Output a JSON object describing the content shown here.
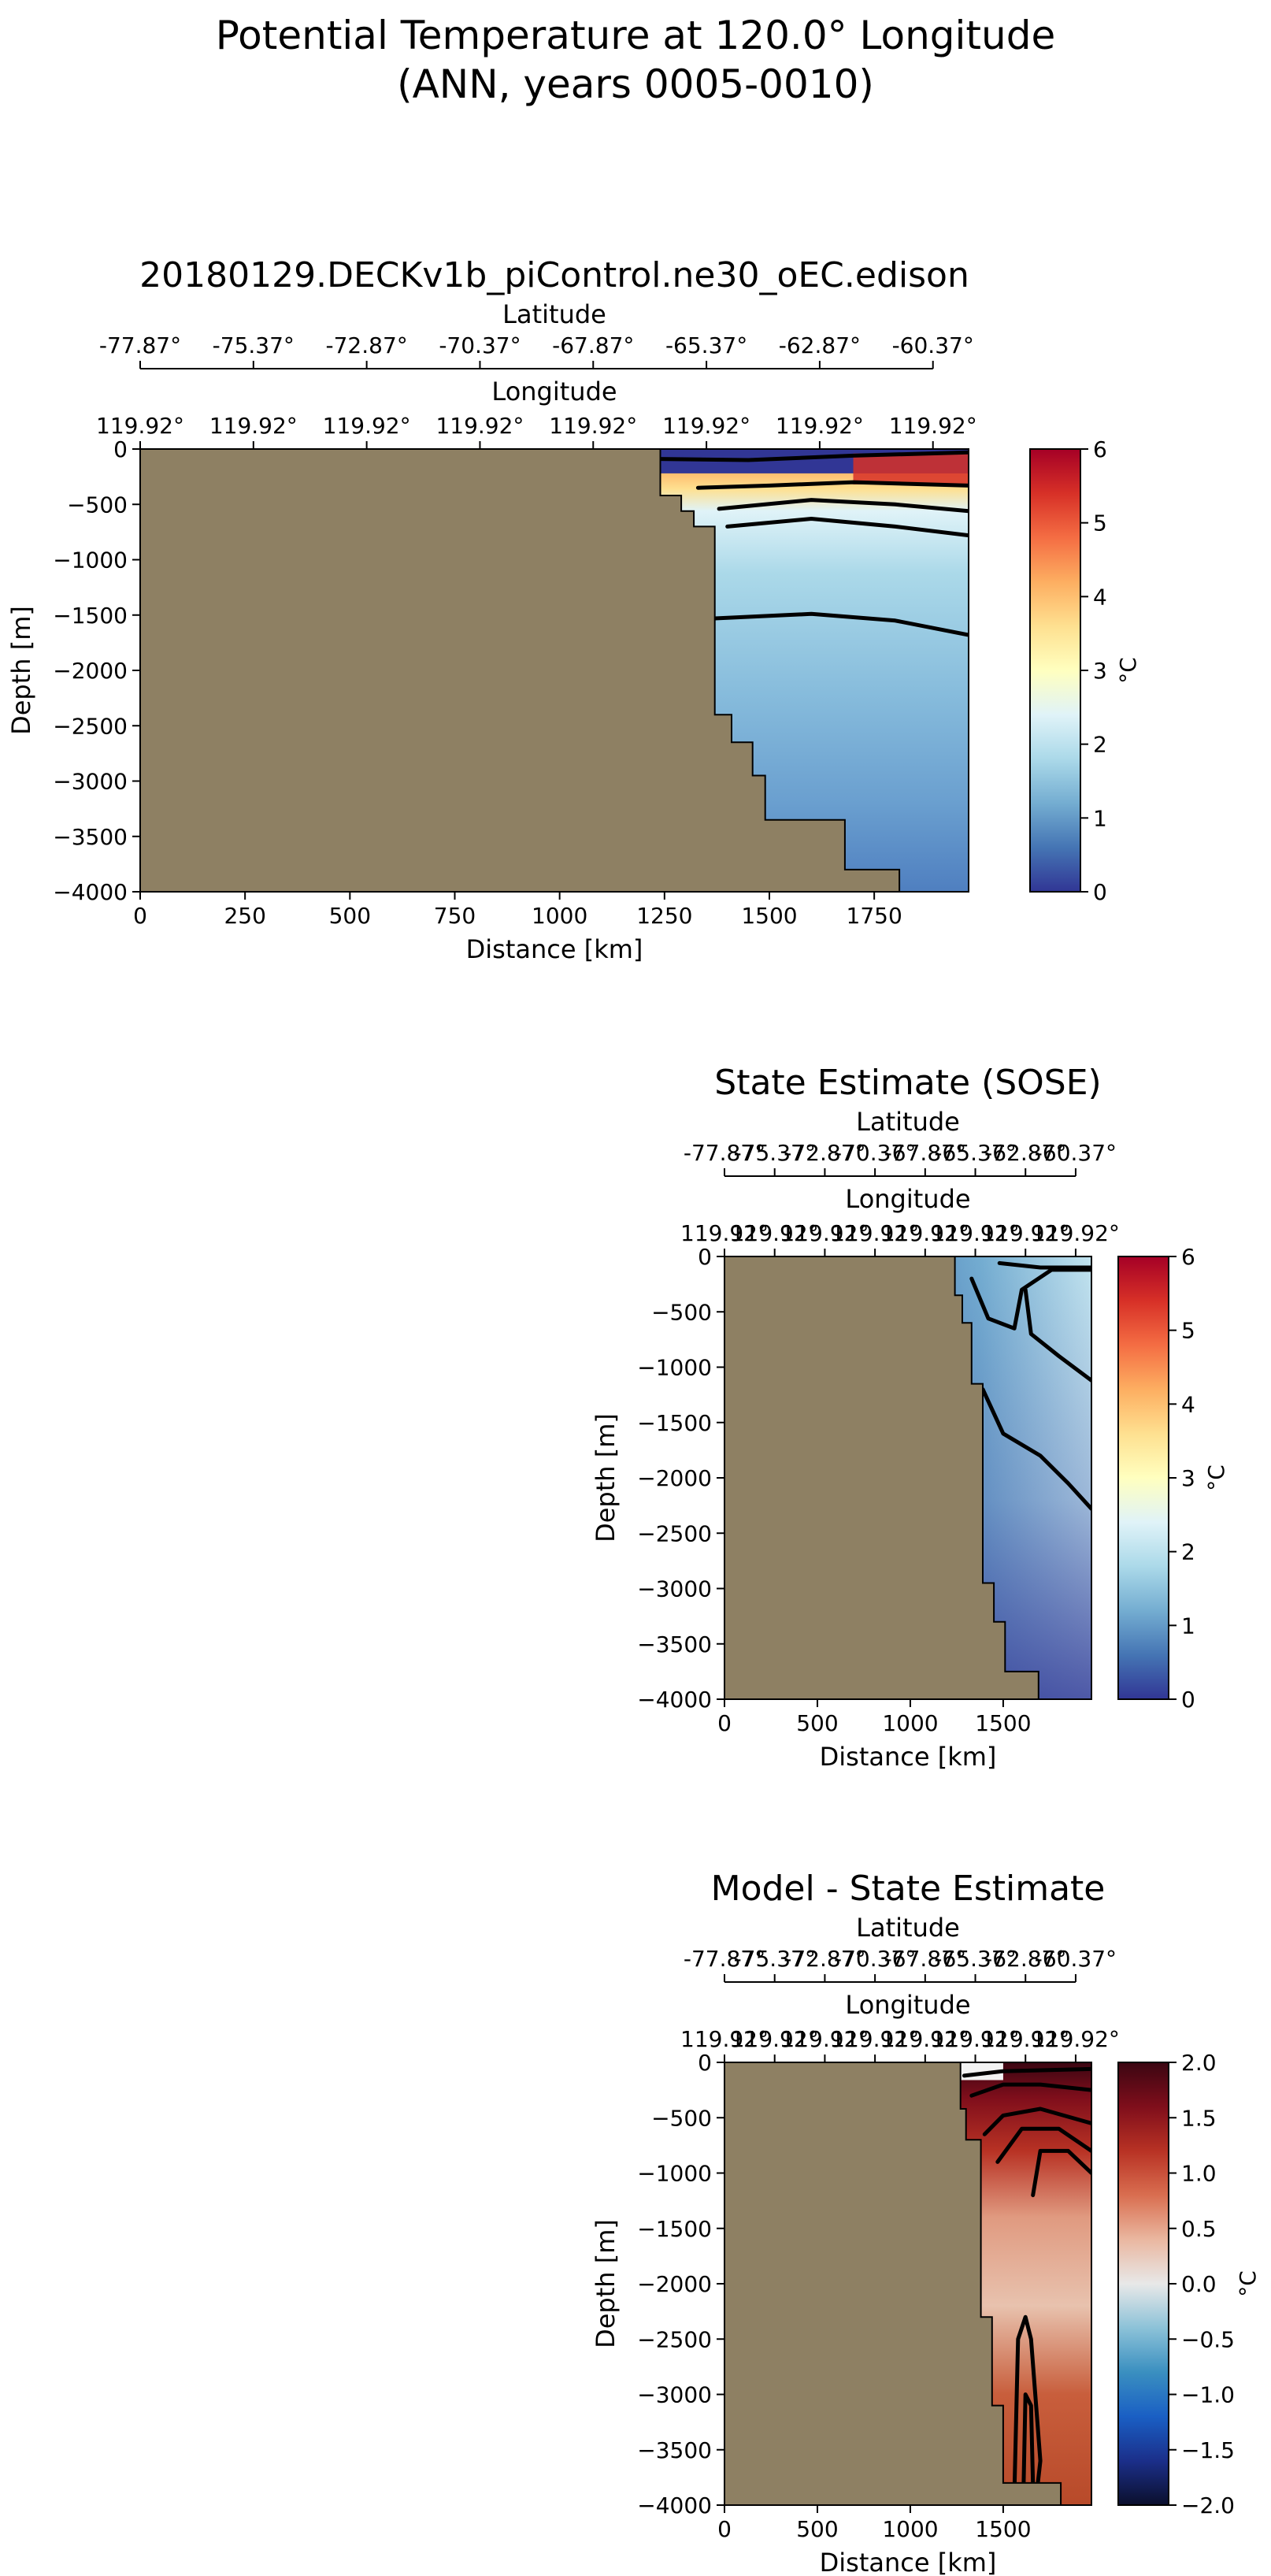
{
  "figure": {
    "title_line1": "Potential Temperature at 120.0° Longitude",
    "title_line2": "(ANN, years 0005-0010)"
  },
  "colors": {
    "land": "#8e8063",
    "contour": "#000000",
    "temp_stops": [
      "#313695",
      "#4575b4",
      "#74add1",
      "#abd9e9",
      "#e0f3f8",
      "#ffffbf",
      "#fee090",
      "#fdae61",
      "#f46d43",
      "#d73027",
      "#a50026"
    ],
    "diff_stops": [
      "#0b0f2c",
      "#1b2f8a",
      "#1a5fc4",
      "#3a8fc0",
      "#8cc2d8",
      "#e8e8e8",
      "#eab7a0",
      "#d96e50",
      "#b83224",
      "#7f0e1b",
      "#3b0612"
    ]
  },
  "chart_data": [
    {
      "type": "heatmap",
      "id": "model",
      "title": "20180129.DECKv1b_piControl.ne30_oEC.edison",
      "xlabel": "Distance [km]",
      "ylabel": "Depth [m]",
      "xlim": [
        0,
        1975
      ],
      "ylim": [
        -4000,
        0
      ],
      "xticks": [
        "0",
        "250",
        "500",
        "750",
        "1000",
        "1250",
        "1500",
        "1750"
      ],
      "xtick_values": [
        0,
        250,
        500,
        750,
        1000,
        1250,
        1500,
        1750
      ],
      "yticks": [
        "0",
        "−500",
        "−1000",
        "−1500",
        "−2000",
        "−2500",
        "−3000",
        "−3500",
        "−4000"
      ],
      "ytick_values": [
        0,
        -500,
        -1000,
        -1500,
        -2000,
        -2500,
        -3000,
        -3500,
        -4000
      ],
      "lat_label": "Latitude",
      "lat_ticks": [
        "-77.87°",
        "-75.37°",
        "-72.87°",
        "-70.37°",
        "-67.87°",
        "-65.37°",
        "-62.87°",
        "-60.37°"
      ],
      "lon_label": "Longitude",
      "lon_ticks": [
        "119.92°",
        "119.92°",
        "119.92°",
        "119.92°",
        "119.92°",
        "119.92°",
        "119.92°",
        "119.92°"
      ],
      "colorbar": {
        "label": "°C",
        "range": [
          0,
          6
        ],
        "ticks": [
          "0",
          "1",
          "2",
          "3",
          "4",
          "5",
          "6"
        ],
        "tick_values": [
          0,
          1,
          2,
          3,
          4,
          5,
          6
        ]
      },
      "bathymetry": [
        [
          1240,
          0
        ],
        [
          1240,
          -420
        ],
        [
          1290,
          -420
        ],
        [
          1290,
          -560
        ],
        [
          1320,
          -560
        ],
        [
          1320,
          -700
        ],
        [
          1370,
          -700
        ],
        [
          1370,
          -2400
        ],
        [
          1410,
          -2400
        ],
        [
          1410,
          -2650
        ],
        [
          1460,
          -2650
        ],
        [
          1460,
          -2950
        ],
        [
          1490,
          -2950
        ],
        [
          1490,
          -3350
        ],
        [
          1680,
          -3350
        ],
        [
          1680,
          -3800
        ],
        [
          1810,
          -3800
        ],
        [
          1810,
          -4000
        ]
      ],
      "contours": [
        [
          [
            1240,
            -90
          ],
          [
            1450,
            -100
          ],
          [
            1700,
            -60
          ],
          [
            1975,
            -30
          ]
        ],
        [
          [
            1330,
            -350
          ],
          [
            1500,
            -330
          ],
          [
            1700,
            -300
          ],
          [
            1975,
            -330
          ]
        ],
        [
          [
            1380,
            -540
          ],
          [
            1600,
            -460
          ],
          [
            1800,
            -500
          ],
          [
            1975,
            -560
          ]
        ],
        [
          [
            1400,
            -700
          ],
          [
            1600,
            -630
          ],
          [
            1800,
            -700
          ],
          [
            1975,
            -780
          ]
        ],
        [
          [
            1370,
            -1530
          ],
          [
            1600,
            -1490
          ],
          [
            1800,
            -1550
          ],
          [
            1975,
            -1680
          ]
        ]
      ]
    },
    {
      "type": "heatmap",
      "id": "sose",
      "title": "State Estimate (SOSE)",
      "xlabel": "Distance [km]",
      "ylabel": "Depth [m]",
      "xlim": [
        0,
        1975
      ],
      "ylim": [
        -4000,
        0
      ],
      "xticks": [
        "0",
        "500",
        "1000",
        "1500"
      ],
      "xtick_values": [
        0,
        500,
        1000,
        1500
      ],
      "yticks": [
        "0",
        "−500",
        "−1000",
        "−1500",
        "−2000",
        "−2500",
        "−3000",
        "−3500",
        "−4000"
      ],
      "ytick_values": [
        0,
        -500,
        -1000,
        -1500,
        -2000,
        -2500,
        -3000,
        -3500,
        -4000
      ],
      "lat_label": "Latitude",
      "lat_ticks": [
        "-77.87°",
        "-75.37°",
        "-72.87°",
        "-70.37°",
        "-67.87°",
        "-65.37°",
        "-62.87°",
        "-60.37°"
      ],
      "lon_label": "Longitude",
      "lon_ticks": [
        "119.92°",
        "119.92°",
        "119.92°",
        "119.92°",
        "119.92°",
        "119.92°",
        "119.92°",
        "119.92°"
      ],
      "colorbar": {
        "label": "°C",
        "range": [
          0,
          6
        ],
        "ticks": [
          "0",
          "1",
          "2",
          "3",
          "4",
          "5",
          "6"
        ],
        "tick_values": [
          0,
          1,
          2,
          3,
          4,
          5,
          6
        ]
      },
      "bathymetry": [
        [
          1240,
          0
        ],
        [
          1240,
          -350
        ],
        [
          1280,
          -350
        ],
        [
          1280,
          -600
        ],
        [
          1330,
          -600
        ],
        [
          1330,
          -1150
        ],
        [
          1390,
          -1150
        ],
        [
          1390,
          -2950
        ],
        [
          1450,
          -2950
        ],
        [
          1450,
          -3300
        ],
        [
          1510,
          -3300
        ],
        [
          1510,
          -3750
        ],
        [
          1690,
          -3750
        ],
        [
          1690,
          -4000
        ]
      ],
      "contours": [
        [
          [
            1480,
            -60
          ],
          [
            1700,
            -100
          ],
          [
            1975,
            -100
          ]
        ],
        [
          [
            1330,
            -200
          ],
          [
            1420,
            -560
          ],
          [
            1560,
            -650
          ],
          [
            1600,
            -300
          ],
          [
            1760,
            -120
          ],
          [
            1975,
            -120
          ]
        ],
        [
          [
            1620,
            -300
          ],
          [
            1650,
            -700
          ],
          [
            1800,
            -900
          ],
          [
            1975,
            -1120
          ]
        ],
        [
          [
            1390,
            -1200
          ],
          [
            1500,
            -1600
          ],
          [
            1700,
            -1800
          ],
          [
            1850,
            -2050
          ],
          [
            1975,
            -2280
          ]
        ]
      ]
    },
    {
      "type": "heatmap",
      "id": "diff",
      "title": "Model - State Estimate",
      "xlabel": "Distance [km]",
      "ylabel": "Depth [m]",
      "xlim": [
        0,
        1975
      ],
      "ylim": [
        -4000,
        0
      ],
      "xticks": [
        "0",
        "500",
        "1000",
        "1500"
      ],
      "xtick_values": [
        0,
        500,
        1000,
        1500
      ],
      "yticks": [
        "0",
        "−500",
        "−1000",
        "−1500",
        "−2000",
        "−2500",
        "−3000",
        "−3500",
        "−4000"
      ],
      "ytick_values": [
        0,
        -500,
        -1000,
        -1500,
        -2000,
        -2500,
        -3000,
        -3500,
        -4000
      ],
      "lat_label": "Latitude",
      "lat_ticks": [
        "-77.87°",
        "-75.37°",
        "-72.87°",
        "-70.37°",
        "-67.87°",
        "-65.37°",
        "-62.87°",
        "-60.37°"
      ],
      "lon_label": "Longitude",
      "lon_ticks": [
        "119.92°",
        "119.92°",
        "119.92°",
        "119.92°",
        "119.92°",
        "119.92°",
        "119.92°",
        "119.92°"
      ],
      "colorbar": {
        "label": "°C",
        "range": [
          -2,
          2
        ],
        "ticks": [
          "−2.0",
          "−1.5",
          "−1.0",
          "−0.5",
          "0.0",
          "0.5",
          "1.0",
          "1.5",
          "2.0"
        ],
        "tick_values": [
          -2,
          -1.5,
          -1,
          -0.5,
          0,
          0.5,
          1,
          1.5,
          2
        ]
      },
      "bathymetry": [
        [
          1270,
          0
        ],
        [
          1270,
          -420
        ],
        [
          1300,
          -420
        ],
        [
          1300,
          -700
        ],
        [
          1380,
          -700
        ],
        [
          1380,
          -2300
        ],
        [
          1440,
          -2300
        ],
        [
          1440,
          -3100
        ],
        [
          1500,
          -3100
        ],
        [
          1500,
          -3800
        ],
        [
          1810,
          -3800
        ],
        [
          1810,
          -4000
        ]
      ],
      "contours": [
        [
          [
            1290,
            -120
          ],
          [
            1500,
            -80
          ],
          [
            1975,
            -60
          ]
        ],
        [
          [
            1330,
            -300
          ],
          [
            1500,
            -200
          ],
          [
            1700,
            -200
          ],
          [
            1975,
            -250
          ]
        ],
        [
          [
            1400,
            -650
          ],
          [
            1500,
            -480
          ],
          [
            1700,
            -420
          ],
          [
            1975,
            -550
          ]
        ],
        [
          [
            1470,
            -900
          ],
          [
            1600,
            -600
          ],
          [
            1800,
            -600
          ],
          [
            1975,
            -800
          ]
        ],
        [
          [
            1660,
            -1200
          ],
          [
            1700,
            -800
          ],
          [
            1850,
            -800
          ],
          [
            1975,
            -1000
          ]
        ],
        [
          [
            1560,
            -3900
          ],
          [
            1580,
            -2500
          ],
          [
            1620,
            -2300
          ],
          [
            1650,
            -2500
          ],
          [
            1700,
            -3600
          ],
          [
            1680,
            -3900
          ]
        ],
        [
          [
            1610,
            -3800
          ],
          [
            1620,
            -3000
          ],
          [
            1650,
            -3100
          ],
          [
            1660,
            -3800
          ]
        ]
      ]
    }
  ]
}
